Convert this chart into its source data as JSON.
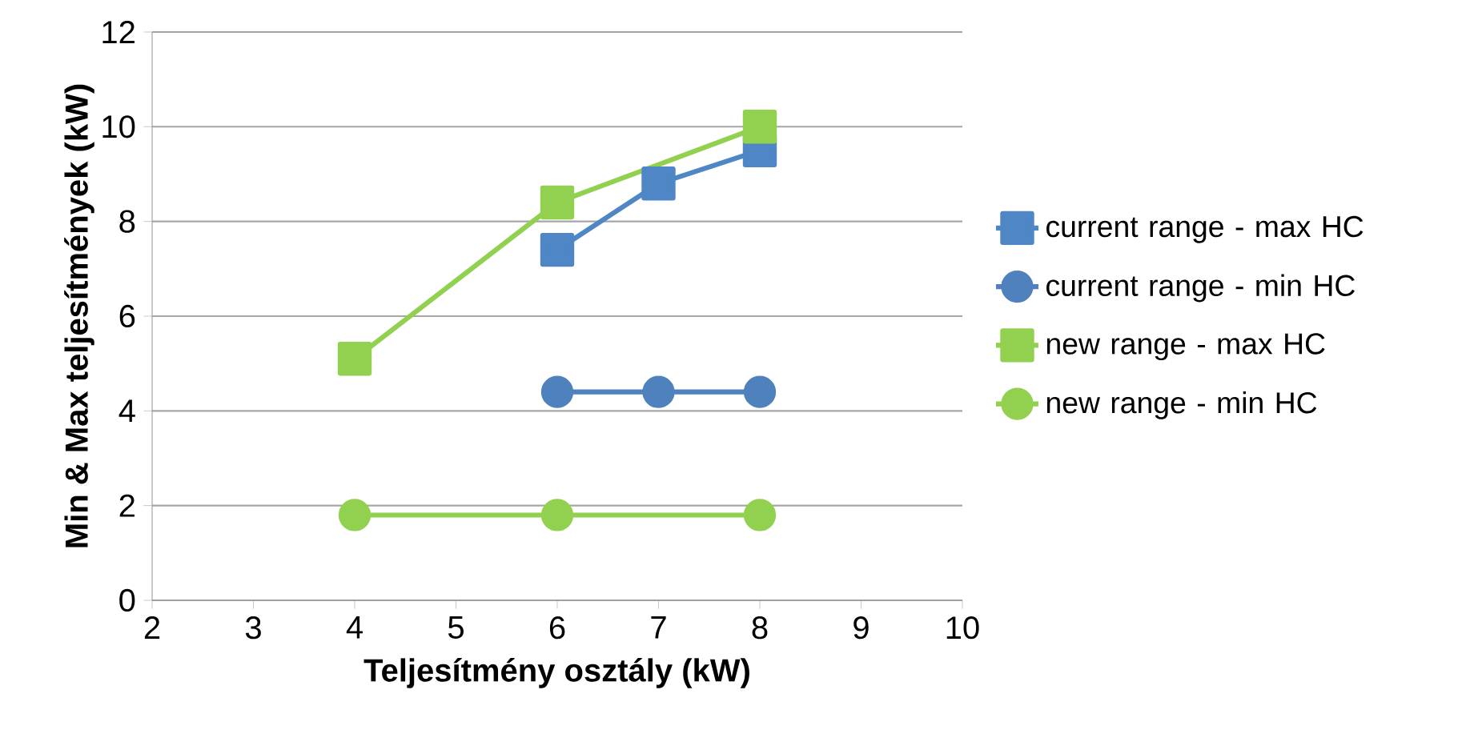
{
  "chart_data": {
    "type": "line",
    "xlabel": "Teljesítmény osztály (kW)",
    "ylabel": "Min & Max teljesítmények (kW)",
    "xlim": [
      2,
      10
    ],
    "xticks": [
      2,
      3,
      4,
      5,
      6,
      7,
      8,
      9,
      10
    ],
    "ylim": [
      0,
      12
    ],
    "yticks": [
      0,
      2,
      4,
      6,
      8,
      10,
      12
    ],
    "grid": "y",
    "legend": "right",
    "line_style": "solid",
    "series": [
      {
        "name": "current range - max HC",
        "color": "#4f86c6",
        "marker": "square",
        "x": [
          6,
          7,
          8
        ],
        "values": [
          7.4,
          8.8,
          9.5
        ]
      },
      {
        "name": "current range - min HC",
        "color": "#4f81bd",
        "marker": "circle",
        "x": [
          6,
          7,
          8
        ],
        "values": [
          4.4,
          4.4,
          4.4
        ]
      },
      {
        "name": "new range - max HC",
        "color": "#92d050",
        "marker": "square",
        "x": [
          4,
          6,
          8
        ],
        "values": [
          5.1,
          8.4,
          10.0
        ]
      },
      {
        "name": "new range - min HC",
        "color": "#92d050",
        "marker": "circle",
        "x": [
          4,
          6,
          8
        ],
        "values": [
          1.8,
          1.8,
          1.8
        ]
      }
    ]
  }
}
